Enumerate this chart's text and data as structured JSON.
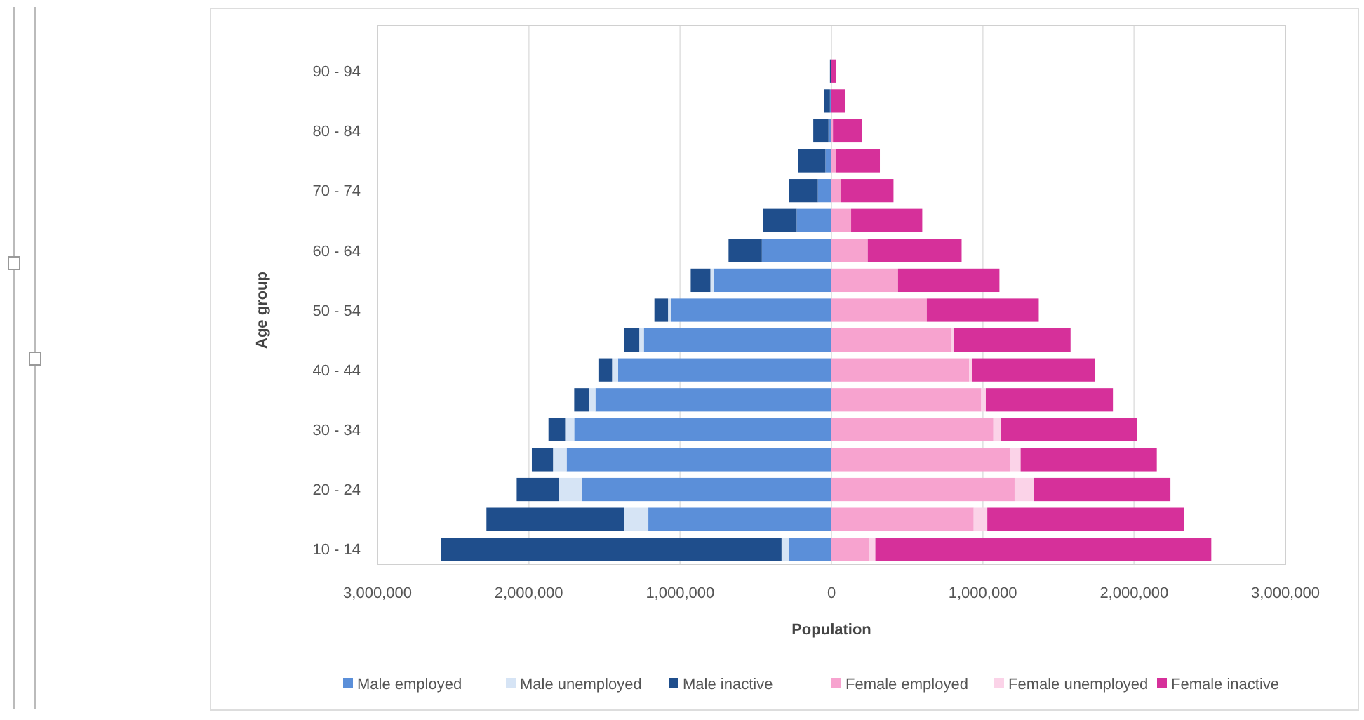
{
  "chart_data": {
    "type": "bar",
    "orientation": "horizontal",
    "stacked": true,
    "xlabel": "Population",
    "ylabel": "Age group",
    "categories": [
      "90 - 94",
      null,
      "80 - 84",
      null,
      "70 - 74",
      null,
      "60 - 64",
      null,
      "50 - 54",
      null,
      "40 - 44",
      null,
      "30 - 34",
      null,
      "20 - 24",
      null,
      "10 - 14"
    ],
    "series": [
      {
        "name": "Male employed",
        "color": "#5b8fd9",
        "values": [
          0,
          -10000,
          -20000,
          -40000,
          -90000,
          -230000,
          -460000,
          -780000,
          -1060000,
          -1240000,
          -1410000,
          -1560000,
          -1700000,
          -1750000,
          -1650000,
          -1210000,
          -280000
        ]
      },
      {
        "name": "Male unemployed",
        "color": "#d6e4f5",
        "values": [
          0,
          0,
          0,
          0,
          0,
          0,
          0,
          -20000,
          -20000,
          -30000,
          -40000,
          -40000,
          -60000,
          -90000,
          -150000,
          -160000,
          -50000
        ]
      },
      {
        "name": "Male inactive",
        "color": "#1f4e8c",
        "values": [
          -10000,
          -40000,
          -100000,
          -180000,
          -190000,
          -220000,
          -220000,
          -130000,
          -90000,
          -100000,
          -90000,
          -100000,
          -110000,
          -140000,
          -280000,
          -910000,
          -2250000
        ]
      },
      {
        "name": "Female employed",
        "color": "#f7a3cf",
        "values": [
          0,
          0,
          10000,
          30000,
          60000,
          130000,
          240000,
          440000,
          630000,
          790000,
          910000,
          990000,
          1070000,
          1180000,
          1210000,
          940000,
          250000
        ]
      },
      {
        "name": "Female unemployed",
        "color": "#fbd3e8",
        "values": [
          0,
          0,
          0,
          0,
          0,
          0,
          0,
          0,
          0,
          20000,
          20000,
          30000,
          50000,
          70000,
          130000,
          90000,
          40000
        ]
      },
      {
        "name": "Female inactive",
        "color": "#d6309a",
        "values": [
          30000,
          90000,
          190000,
          290000,
          350000,
          470000,
          620000,
          670000,
          740000,
          770000,
          810000,
          840000,
          900000,
          900000,
          900000,
          1300000,
          2220000
        ]
      }
    ],
    "xlim": [
      -3000000,
      3000000
    ],
    "xticks": [
      {
        "value": -3000000,
        "label": "3,000,000"
      },
      {
        "value": -2000000,
        "label": "2,000,000"
      },
      {
        "value": -1000000,
        "label": "1,000,000"
      },
      0,
      {
        "value": 1000000,
        "label": "1,000,000"
      },
      {
        "value": 2000000,
        "label": "2,000,000"
      },
      {
        "value": 3000000,
        "label": "3,000,000"
      }
    ],
    "grid": "x",
    "legend": "bottom"
  }
}
